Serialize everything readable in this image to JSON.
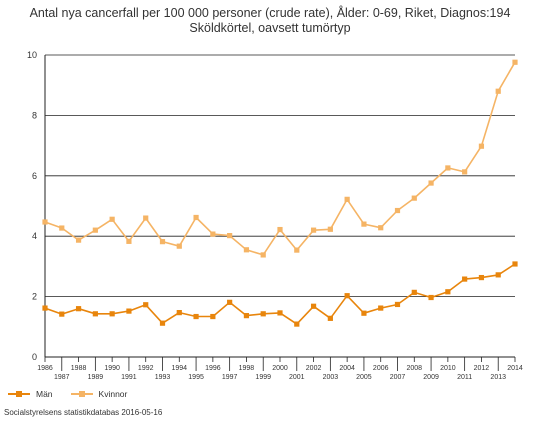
{
  "chart_data": {
    "type": "line",
    "title": "Antal nya cancerfall per 100 000 personer (crude rate), Ålder: 0-69, Riket, Diagnos:194 Sköldkörtel, oavsett tumörtyp",
    "xlabel": "",
    "ylabel": "",
    "ylim": [
      0,
      10
    ],
    "yticks": [
      0,
      2,
      4,
      6,
      8,
      10
    ],
    "grid": true,
    "legend": "bottom-left",
    "x": [
      1986,
      1987,
      1988,
      1989,
      1990,
      1991,
      1992,
      1993,
      1994,
      1995,
      1996,
      1997,
      1998,
      1999,
      2000,
      2001,
      2002,
      2003,
      2004,
      2005,
      2006,
      2007,
      2008,
      2009,
      2010,
      2011,
      2012,
      2013,
      2014
    ],
    "series": [
      {
        "name": "Män",
        "color": "#e8850c",
        "values": [
          1.62,
          1.42,
          1.6,
          1.43,
          1.43,
          1.52,
          1.73,
          1.12,
          1.47,
          1.34,
          1.34,
          1.81,
          1.37,
          1.43,
          1.46,
          1.09,
          1.68,
          1.28,
          2.03,
          1.45,
          1.62,
          1.74,
          2.14,
          1.97,
          2.16,
          2.58,
          2.63,
          2.72,
          3.08
        ]
      },
      {
        "name": "Kvinnor",
        "color": "#f5b465",
        "values": [
          4.47,
          4.27,
          3.87,
          4.2,
          4.56,
          3.83,
          4.6,
          3.82,
          3.67,
          4.62,
          4.07,
          4.02,
          3.55,
          3.38,
          4.22,
          3.54,
          4.2,
          4.23,
          5.22,
          4.4,
          4.28,
          4.85,
          5.26,
          5.76,
          6.26,
          6.13,
          6.98,
          8.8,
          9.76
        ]
      }
    ]
  },
  "source": "Socialstyrelsens statistikdatabas 2016-05-16"
}
